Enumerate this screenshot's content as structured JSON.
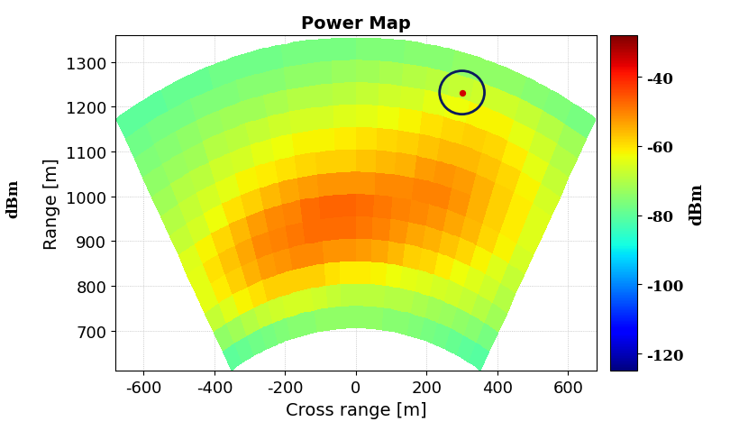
{
  "chart_data": {
    "type": "heatmap",
    "title": "Power Map",
    "x_label": "Cross range [m]",
    "y_label": "Range [m]",
    "xlim": [
      -680,
      680
    ],
    "ylim": [
      610,
      1360
    ],
    "xticks": [
      -600,
      -400,
      -200,
      0,
      200,
      400,
      600
    ],
    "yticks": [
      700,
      800,
      900,
      1000,
      1100,
      1200,
      1300
    ],
    "grid": true,
    "radius_edges": [
      705,
      755,
      805,
      855,
      905,
      955,
      1005,
      1055,
      1105,
      1155,
      1205,
      1255,
      1305,
      1355
    ],
    "angle_edges": [
      -30,
      -27,
      -24,
      -21,
      -18,
      -15,
      -12,
      -9,
      -6,
      -3,
      0,
      3,
      6,
      9,
      12,
      15,
      18,
      21,
      24,
      27,
      30
    ],
    "cells": [
      [
        -80,
        -79,
        -78,
        -77,
        -76,
        -75,
        -75,
        -74,
        -74,
        -74,
        -74,
        -74,
        -75,
        -75,
        -76,
        -77,
        -78,
        -79,
        -80,
        -81
      ],
      [
        -74,
        -72,
        -70,
        -68,
        -67,
        -66,
        -66,
        -67,
        -68,
        -69,
        -69,
        -69,
        -70,
        -70,
        -71,
        -72,
        -73,
        -74,
        -75,
        -77
      ],
      [
        -68,
        -65,
        -62,
        -60,
        -58,
        -58,
        -58,
        -58,
        -60,
        -61,
        -61,
        -62,
        -63,
        -64,
        -65,
        -66,
        -67,
        -68,
        -70,
        -72
      ],
      [
        -64,
        -61,
        -58,
        -55,
        -53,
        -52,
        -51,
        -51,
        -52,
        -52,
        -53,
        -54,
        -56,
        -58,
        -59,
        -61,
        -63,
        -65,
        -67,
        -70
      ],
      [
        -64,
        -60,
        -57,
        -54,
        -51,
        -50,
        -49,
        -48,
        -48,
        -48,
        -49,
        -50,
        -52,
        -54,
        -55,
        -57,
        -59,
        -62,
        -65,
        -68
      ],
      [
        -65,
        -62,
        -59,
        -56,
        -53,
        -51,
        -50,
        -48,
        -47,
        -47,
        -48,
        -49,
        -50,
        -51,
        -52,
        -54,
        -56,
        -59,
        -62,
        -66
      ],
      [
        -68,
        -66,
        -63,
        -60,
        -58,
        -56,
        -54,
        -53,
        -52,
        -52,
        -52,
        -51,
        -51,
        -50,
        -50,
        -52,
        -55,
        -58,
        -61,
        -65
      ],
      [
        -70,
        -68,
        -66,
        -64,
        -62,
        -61,
        -60,
        -59,
        -58,
        -58,
        -57,
        -56,
        -55,
        -53,
        -52,
        -53,
        -55,
        -58,
        -61,
        -65
      ],
      [
        -72,
        -70,
        -69,
        -67,
        -66,
        -64,
        -63,
        -62,
        -62,
        -61,
        -60,
        -59,
        -58,
        -57,
        -56,
        -56,
        -57,
        -59,
        -62,
        -66
      ],
      [
        -74,
        -73,
        -72,
        -70,
        -69,
        -68,
        -67,
        -66,
        -66,
        -65,
        -64,
        -63,
        -62,
        -60,
        -59,
        -58,
        -59,
        -61,
        -64,
        -68
      ],
      [
        -76,
        -75,
        -74,
        -73,
        -72,
        -72,
        -71,
        -70,
        -70,
        -69,
        -68,
        -67,
        -66,
        -64,
        -63,
        -62,
        -62,
        -64,
        -67,
        -70
      ],
      [
        -78,
        -77,
        -77,
        -76,
        -76,
        -75,
        -75,
        -74,
        -74,
        -73,
        -72,
        -71,
        -70,
        -69,
        -68,
        -67,
        -67,
        -68,
        -70,
        -72
      ],
      [
        -80,
        -80,
        -79,
        -79,
        -78,
        -78,
        -78,
        -77,
        -77,
        -77,
        -76,
        -76,
        -75,
        -75,
        -74,
        -74,
        -74,
        -75,
        -76,
        -77
      ]
    ],
    "target": {
      "x": 300,
      "y": 1232,
      "value": -35
    },
    "color_range": [
      -125,
      -28
    ],
    "color_ticks": [
      -120,
      -100,
      -80,
      -60,
      -40
    ],
    "colorbar_label": "dBm",
    "left_label": "dBm"
  }
}
